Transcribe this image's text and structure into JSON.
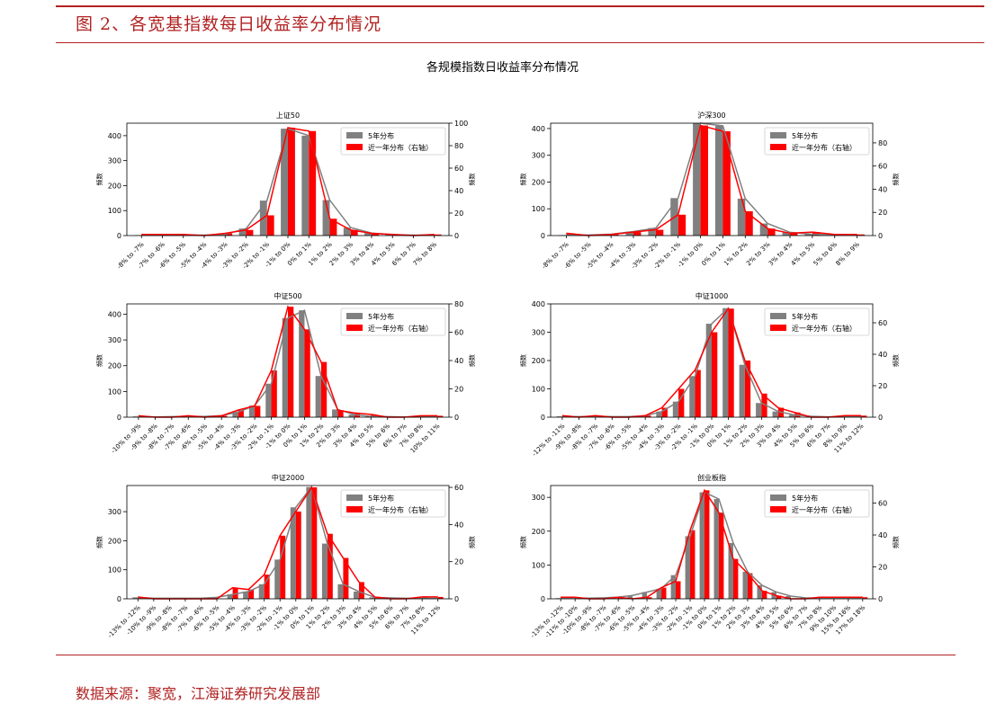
{
  "figure_caption": "图 2、各宽基指数每日收益率分布情况",
  "main_title": "各规模指数日收益率分布情况",
  "source": "数据来源：聚宽，江海证券研究发展部",
  "colors": {
    "five_year": "#808080",
    "one_year": "#ff0000",
    "accent": "#b22222"
  },
  "chart_data": [
    {
      "type": "bar",
      "title": "上证50",
      "ylabel": "频数",
      "ylabel_right": "频数",
      "legend": [
        "5年分布",
        "近一年分布（右轴）"
      ],
      "legend_position": "top-right",
      "categories": [
        "-8% to -7%",
        "-7% to -6%",
        "-6% to -5%",
        "-5% to -4%",
        "-4% to -3%",
        "-3% to -2%",
        "-2% to -1%",
        "-1% to 0%",
        "0% to 1%",
        "1% to 2%",
        "2% to 3%",
        "3% to 4%",
        "4% to 5%",
        "6% to 7%",
        "7% to 8%"
      ],
      "ylim": [
        0,
        450
      ],
      "yticks": [
        0,
        100,
        200,
        300,
        400
      ],
      "ylim_right": [
        0,
        100
      ],
      "yticks_right": [
        0,
        20,
        40,
        60,
        80,
        100
      ],
      "series": [
        {
          "name": "5年分布",
          "axis": "left",
          "values": [
            2,
            2,
            2,
            2,
            5,
            28,
            140,
            428,
            400,
            142,
            32,
            10,
            4,
            2,
            2
          ]
        },
        {
          "name": "近一年分布（右轴）",
          "axis": "right",
          "values": [
            1,
            1,
            1,
            0,
            2,
            5,
            18,
            96,
            93,
            15,
            5,
            2,
            1,
            0,
            1
          ]
        }
      ]
    },
    {
      "type": "bar",
      "title": "沪深300",
      "ylabel": "频数",
      "ylabel_right": "频数",
      "legend": [
        "5年分布",
        "近一年分布（右轴）"
      ],
      "legend_position": "top-right",
      "categories": [
        "-8% to -7%",
        "-6% to -5%",
        "-5% to -4%",
        "-4% to -3%",
        "-3% to -2%",
        "-2% to -1%",
        "-1% to 0%",
        "0% to 1%",
        "1% to 2%",
        "2% to 3%",
        "3% to 4%",
        "4% to 5%",
        "5% to 6%",
        "8% to 9%"
      ],
      "ylim": [
        0,
        420
      ],
      "yticks": [
        0,
        100,
        200,
        300,
        400
      ],
      "ylim_right": [
        0,
        97
      ],
      "yticks_right": [
        0,
        20,
        40,
        60,
        80
      ],
      "series": [
        {
          "name": "5年分布",
          "axis": "left",
          "values": [
            2,
            2,
            5,
            15,
            28,
            140,
            420,
            410,
            138,
            45,
            12,
            5,
            3,
            2
          ]
        },
        {
          "name": "近一年分布（右轴）",
          "axis": "right",
          "values": [
            2,
            0,
            1,
            3,
            5,
            18,
            95,
            90,
            21,
            6,
            2,
            3,
            1,
            1
          ]
        }
      ]
    },
    {
      "type": "bar",
      "title": "中证500",
      "ylabel": "频数",
      "ylabel_right": "频数",
      "legend": [
        "5年分布",
        "近一年分布（右轴）"
      ],
      "legend_position": "top-right",
      "categories": [
        "-10% to -9%",
        "-9% to -8%",
        "-8% to -7%",
        "-7% to -6%",
        "-6% to -5%",
        "-5% to -4%",
        "-4% to -3%",
        "-3% to -2%",
        "-2% to -1%",
        "-1% to 0%",
        "0% to 1%",
        "1% to 2%",
        "2% to 3%",
        "3% to 4%",
        "4% to 5%",
        "5% to 6%",
        "6% to 7%",
        "7% to 8%",
        "10% to 11%"
      ],
      "ylim": [
        0,
        440
      ],
      "yticks": [
        0,
        100,
        200,
        300,
        400
      ],
      "ylim_right": [
        0,
        80
      ],
      "yticks_right": [
        0,
        20,
        40,
        60,
        80
      ],
      "series": [
        {
          "name": "5年分布",
          "axis": "left",
          "values": [
            3,
            1,
            2,
            3,
            3,
            6,
            20,
            45,
            130,
            385,
            415,
            160,
            30,
            10,
            3,
            2,
            1,
            1,
            2
          ]
        },
        {
          "name": "近一年分布（右轴）",
          "axis": "right",
          "values": [
            1,
            0,
            0,
            1,
            0,
            1,
            5,
            8,
            33,
            78,
            62,
            39,
            5,
            3,
            2,
            0,
            0,
            1,
            1
          ]
        }
      ]
    },
    {
      "type": "bar",
      "title": "中证1000",
      "ylabel": "频数",
      "ylabel_right": "频数",
      "legend": [
        "5年分布",
        "近一年分布（右轴）"
      ],
      "legend_position": "top-right",
      "categories": [
        "-12% to -11%",
        "-9% to -8%",
        "-8% to -7%",
        "-7% to -6%",
        "-6% to -5%",
        "-5% to -4%",
        "-4% to -3%",
        "-3% to -2%",
        "-2% to -1%",
        "-1% to 0%",
        "0% to 1%",
        "1% to 2%",
        "2% to 3%",
        "3% to 4%",
        "4% to 5%",
        "5% to 6%",
        "6% to 7%",
        "8% to 9%",
        "11% to 12%"
      ],
      "ylim": [
        0,
        400
      ],
      "yticks": [
        0,
        100,
        200,
        300,
        400
      ],
      "ylim_right": [
        0,
        72
      ],
      "yticks_right": [
        0,
        20,
        40,
        60
      ],
      "series": [
        {
          "name": "5年分布",
          "axis": "left",
          "values": [
            3,
            2,
            3,
            2,
            2,
            5,
            20,
            55,
            145,
            330,
            385,
            185,
            50,
            20,
            8,
            3,
            1,
            2,
            2
          ]
        },
        {
          "name": "近一年分布（右轴）",
          "axis": "right",
          "values": [
            1,
            0,
            1,
            0,
            0,
            1,
            6,
            18,
            30,
            54,
            69,
            36,
            15,
            6,
            3,
            0,
            0,
            1,
            1
          ]
        }
      ]
    },
    {
      "type": "bar",
      "title": "中证2000",
      "ylabel": "频数",
      "ylabel_right": "频数",
      "legend": [
        "5年分布",
        "近一年分布（右轴）"
      ],
      "legend_position": "top-right",
      "categories": [
        "-13% to -12%",
        "-10% to -9%",
        "-9% to -8%",
        "-8% to -7%",
        "-7% to -6%",
        "-6% to -5%",
        "-5% to -4%",
        "-4% to -3%",
        "-3% to -2%",
        "-2% to -1%",
        "-1% to 0%",
        "0% to 1%",
        "1% to 2%",
        "2% to 3%",
        "3% to 4%",
        "4% to 5%",
        "5% to 6%",
        "6% to 7%",
        "7% to 8%",
        "11% to 12%"
      ],
      "ylim": [
        0,
        390
      ],
      "yticks": [
        0,
        100,
        200,
        300
      ],
      "ylim_right": [
        0,
        61
      ],
      "yticks_right": [
        0,
        20,
        40,
        60
      ],
      "series": [
        {
          "name": "5年分布",
          "axis": "left",
          "values": [
            5,
            2,
            2,
            2,
            2,
            5,
            15,
            25,
            50,
            135,
            315,
            385,
            190,
            50,
            25,
            5,
            3,
            2,
            2,
            2
          ]
        },
        {
          "name": "近一年分布（右轴）",
          "axis": "right",
          "values": [
            1,
            0,
            0,
            0,
            0,
            0,
            6,
            5,
            13,
            34,
            47,
            60,
            35,
            22,
            9,
            1,
            0,
            0,
            1,
            1
          ]
        }
      ]
    },
    {
      "type": "bar",
      "title": "创业板指",
      "ylabel": "频数",
      "ylabel_right": "频数",
      "legend": [
        "5年分布",
        "近一年分布（右轴）"
      ],
      "legend_position": "top-right",
      "categories": [
        "-13% to -12%",
        "-11% to -10%",
        "-10% to -9%",
        "-8% to -7%",
        "-7% to -6%",
        "-6% to -5%",
        "-5% to -4%",
        "-4% to -3%",
        "-3% to -2%",
        "-2% to -1%",
        "-1% to 0%",
        "0% to 1%",
        "1% to 2%",
        "2% to 3%",
        "3% to 4%",
        "4% to 5%",
        "5% to 6%",
        "6% to 7%",
        "7% to 8%",
        "9% to 10%",
        "15% to 16%",
        "17% to 18%"
      ],
      "ylim": [
        0,
        335
      ],
      "yticks": [
        0,
        100,
        200,
        300
      ],
      "ylim_right": [
        0,
        71
      ],
      "yticks_right": [
        0,
        20,
        40,
        60
      ],
      "series": [
        {
          "name": "5年分布",
          "axis": "left",
          "values": [
            2,
            2,
            2,
            3,
            5,
            10,
            20,
            30,
            70,
            185,
            315,
            295,
            165,
            80,
            40,
            20,
            8,
            3,
            2,
            2,
            2,
            2
          ]
        },
        {
          "name": "近一年分布（右轴）",
          "axis": "right",
          "values": [
            1,
            1,
            0,
            0,
            1,
            0,
            1,
            7,
            11,
            43,
            68,
            54,
            25,
            16,
            5,
            2,
            0,
            0,
            1,
            1,
            1,
            1
          ]
        }
      ]
    }
  ]
}
